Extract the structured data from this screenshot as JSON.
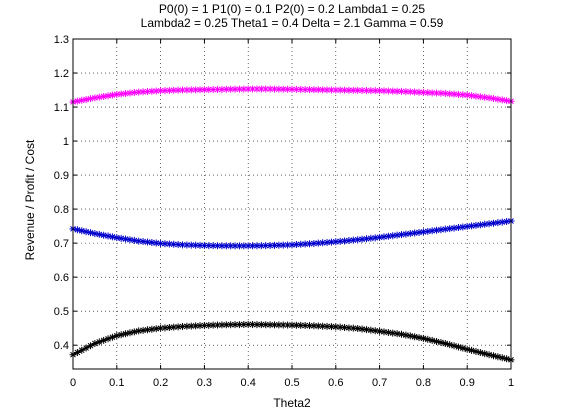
{
  "chart_data": {
    "type": "line",
    "title_lines": [
      "P0(0) = 1 P1(0) = 0.1 P2(0) = 0.2 Lambda1 = 0.25",
      "Lambda2 = 0.25 Theta1 = 0.4 Delta = 2.1 Gamma = 0.59"
    ],
    "xlabel": "Theta2",
    "ylabel": "Revenue / Profit / Cost",
    "xlim": [
      0,
      1
    ],
    "ylim": [
      0.33,
      1.3
    ],
    "xticks": [
      0,
      0.1,
      0.2,
      0.3,
      0.4,
      0.5,
      0.6,
      0.7,
      0.8,
      0.9,
      1
    ],
    "xtick_labels": [
      "0",
      "0.1",
      "0.2",
      "0.3",
      "0.4",
      "0.5",
      "0.6",
      "0.7",
      "0.8",
      "0.9",
      "1"
    ],
    "yticks": [
      0.4,
      0.5,
      0.6,
      0.7,
      0.8,
      0.9,
      1,
      1.1,
      1.2,
      1.3
    ],
    "ytick_labels": [
      "0.4",
      "0.5",
      "0.6",
      "0.7",
      "0.8",
      "0.9",
      "1",
      "1.1",
      "1.2",
      "1.3"
    ],
    "grid": true,
    "marker": "star",
    "x": [
      0,
      0.05,
      0.1,
      0.15,
      0.2,
      0.25,
      0.3,
      0.35,
      0.4,
      0.45,
      0.5,
      0.55,
      0.6,
      0.65,
      0.7,
      0.75,
      0.8,
      0.85,
      0.9,
      0.95,
      1
    ],
    "series": [
      {
        "color": "#ff00ff",
        "values": [
          1.115,
          1.127,
          1.137,
          1.144,
          1.148,
          1.15,
          1.151,
          1.152,
          1.153,
          1.153,
          1.152,
          1.151,
          1.15,
          1.149,
          1.148,
          1.146,
          1.143,
          1.14,
          1.135,
          1.127,
          1.117
        ]
      },
      {
        "color": "#0000cc",
        "values": [
          0.742,
          0.728,
          0.716,
          0.706,
          0.699,
          0.695,
          0.693,
          0.692,
          0.692,
          0.693,
          0.695,
          0.699,
          0.704,
          0.71,
          0.717,
          0.725,
          0.733,
          0.741,
          0.749,
          0.757,
          0.765
        ]
      },
      {
        "color": "#000000",
        "values": [
          0.372,
          0.405,
          0.428,
          0.442,
          0.45,
          0.455,
          0.458,
          0.46,
          0.461,
          0.46,
          0.459,
          0.457,
          0.454,
          0.449,
          0.441,
          0.432,
          0.42,
          0.405,
          0.388,
          0.372,
          0.357
        ]
      }
    ]
  }
}
